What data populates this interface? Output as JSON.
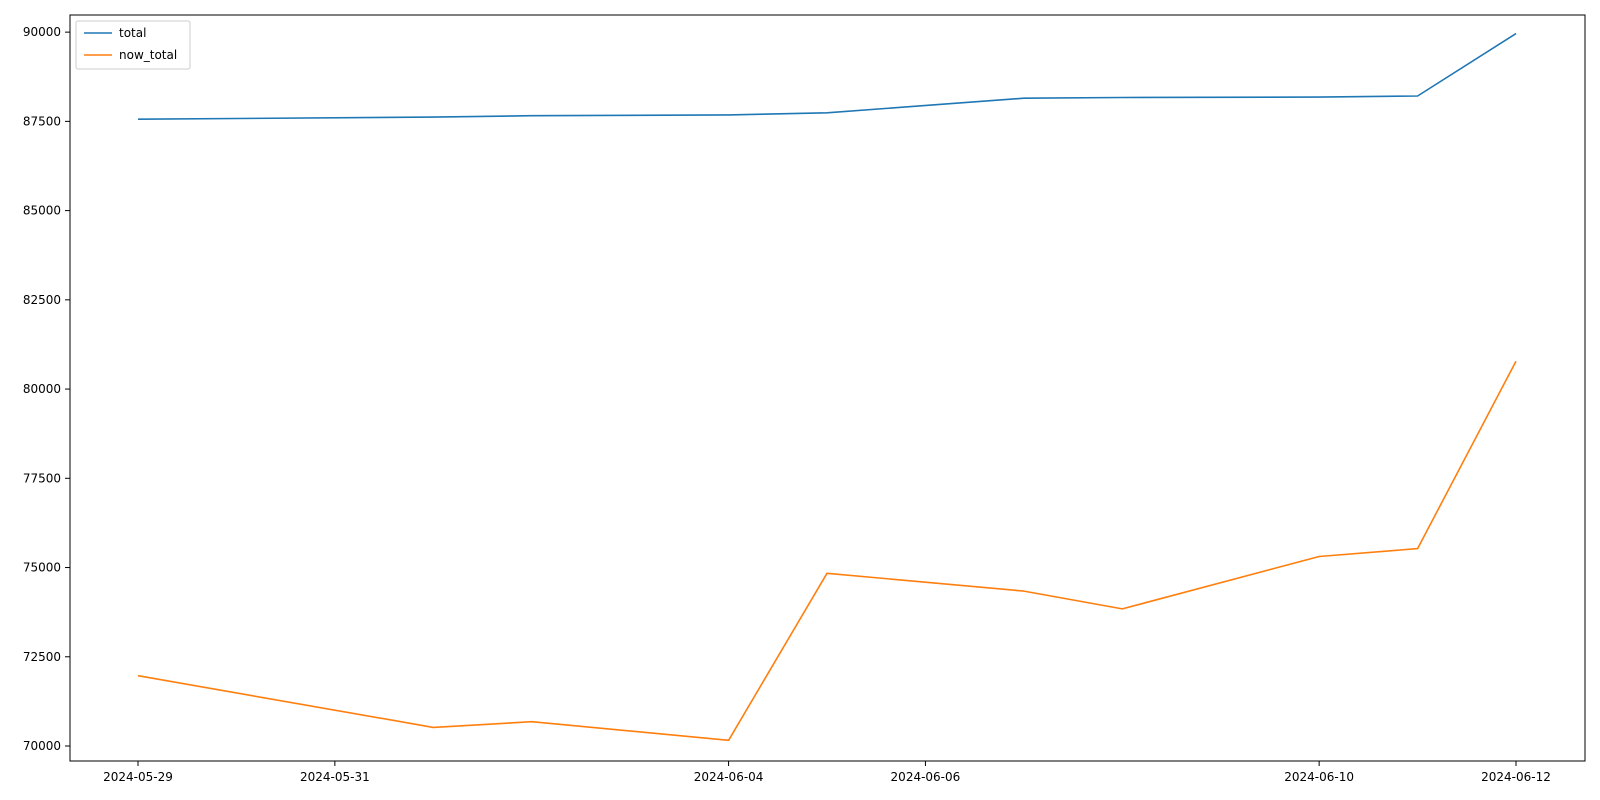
{
  "chart_data": {
    "type": "line",
    "title": "",
    "xlabel": "",
    "ylabel": "",
    "x": [
      "2024-05-29",
      "2024-05-30",
      "2024-05-31",
      "2024-06-01",
      "2024-06-02",
      "2024-06-03",
      "2024-06-04",
      "2024-06-05",
      "2024-06-06",
      "2024-06-07",
      "2024-06-08",
      "2024-06-09",
      "2024-06-10",
      "2024-06-11",
      "2024-06-12"
    ],
    "x_range": [
      "2024-05-28",
      "2024-06-12"
    ],
    "xticks": [
      "2024-05-29",
      "2024-05-31",
      "2024-06-04",
      "2024-06-06",
      "2024-06-10",
      "2024-06-12"
    ],
    "ylim": [
      69580,
      90480
    ],
    "yticks": [
      70000,
      72500,
      75000,
      77500,
      80000,
      82500,
      85000,
      87500,
      90000
    ],
    "grid": false,
    "legend_position": "top-left",
    "series": [
      {
        "name": "total",
        "color": "#1f77b4",
        "values": [
          87560,
          87580,
          null,
          87620,
          87660,
          null,
          87680,
          87740,
          null,
          88150,
          88170,
          null,
          88180,
          88210,
          89960
        ]
      },
      {
        "name": "now_total",
        "color": "#ff7f0e",
        "values": [
          71970,
          null,
          null,
          70520,
          70680,
          null,
          70160,
          74840,
          null,
          74340,
          73840,
          null,
          75310,
          75530,
          80780
        ]
      }
    ]
  }
}
